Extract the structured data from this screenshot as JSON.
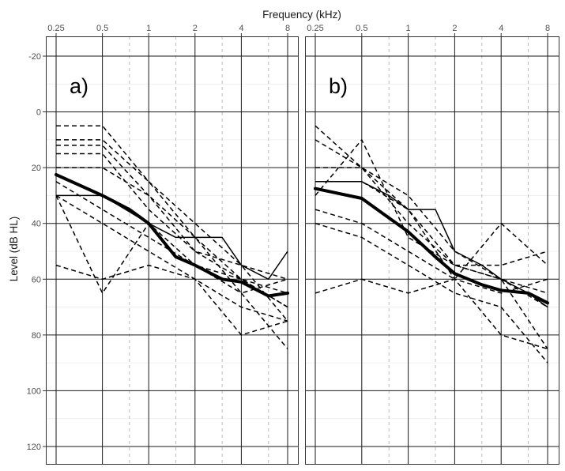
{
  "chart_data": {
    "type": "line",
    "title": "",
    "xlabel": "Frequency (kHz)",
    "ylabel": "Level (dB HL)",
    "x_scale": "log2",
    "xlim": [
      0.25,
      8
    ],
    "ylim": [
      -25,
      127
    ],
    "y_reversed": true,
    "x_ticks": [
      0.25,
      0.5,
      1,
      2,
      4,
      8
    ],
    "x_tick_labels": [
      "0.25",
      "0.5",
      "1",
      "2",
      "4",
      "8"
    ],
    "x_minor_ticks": [
      0.75,
      1.5,
      3,
      6
    ],
    "y_ticks": [
      -20,
      0,
      20,
      40,
      60,
      80,
      100,
      120
    ],
    "y_tick_labels": [
      "-20",
      "0",
      "20",
      "40",
      "60",
      "80",
      "100",
      "120"
    ],
    "grid": true,
    "panels": [
      {
        "label": "a)",
        "mean": {
          "x": [
            0.25,
            0.5,
            0.75,
            1,
            1.5,
            2,
            3,
            4,
            6,
            8
          ],
          "y": [
            22.5,
            30,
            35,
            40,
            52,
            55,
            60,
            61,
            66,
            65
          ]
        },
        "individual": [
          {
            "style": "dashed",
            "x": [
              0.25,
              0.5,
              1,
              2,
              4,
              8
            ],
            "y": [
              5,
              5,
              25,
              40,
              55,
              60
            ]
          },
          {
            "style": "dashed",
            "x": [
              0.25,
              0.5,
              1,
              2,
              4,
              8
            ],
            "y": [
              10,
              10,
              25,
              45,
              60,
              65
            ]
          },
          {
            "style": "dashed",
            "x": [
              0.25,
              0.5,
              1,
              2,
              4,
              8
            ],
            "y": [
              12,
              12,
              30,
              50,
              55,
              75
            ]
          },
          {
            "style": "dashed",
            "x": [
              0.25,
              0.5,
              1,
              2,
              4,
              8
            ],
            "y": [
              15,
              15,
              35,
              50,
              60,
              70
            ]
          },
          {
            "style": "dashed",
            "x": [
              0.25,
              0.5,
              1,
              2,
              4,
              8
            ],
            "y": [
              20,
              20,
              30,
              45,
              65,
              60
            ]
          },
          {
            "style": "dashed",
            "x": [
              0.25,
              0.5,
              1,
              2,
              4,
              8
            ],
            "y": [
              25,
              35,
              45,
              55,
              60,
              70
            ]
          },
          {
            "style": "dashed",
            "x": [
              0.25,
              0.5,
              1,
              2,
              4,
              8
            ],
            "y": [
              30,
              40,
              50,
              60,
              70,
              75
            ]
          },
          {
            "style": "dashed",
            "x": [
              0.25,
              0.5,
              1,
              2,
              4,
              8
            ],
            "y": [
              30,
              65,
              40,
              55,
              65,
              85
            ]
          },
          {
            "style": "dashed",
            "x": [
              0.25,
              0.5,
              1,
              2,
              4,
              8
            ],
            "y": [
              55,
              60,
              55,
              60,
              80,
              75
            ]
          },
          {
            "style": "solid",
            "x": [
              0.25,
              0.5,
              1,
              1.5,
              2,
              3,
              4,
              6,
              8
            ],
            "y": [
              30,
              30,
              40,
              45,
              45,
              45,
              55,
              60,
              50
            ]
          }
        ]
      },
      {
        "label": "b)",
        "mean": {
          "x": [
            0.25,
            0.5,
            0.75,
            1,
            1.5,
            2,
            3,
            4,
            6,
            8
          ],
          "y": [
            27.5,
            31,
            38,
            43,
            52,
            58,
            62,
            64,
            65,
            68.5
          ]
        },
        "individual": [
          {
            "style": "dashed",
            "x": [
              0.25,
              0.5,
              1,
              2,
              4,
              8
            ],
            "y": [
              5,
              20,
              30,
              50,
              60,
              65
            ]
          },
          {
            "style": "dashed",
            "x": [
              0.25,
              0.5,
              1,
              2,
              4,
              8
            ],
            "y": [
              10,
              20,
              35,
              55,
              55,
              50
            ]
          },
          {
            "style": "dashed",
            "x": [
              0.25,
              0.5,
              1,
              2,
              4,
              8
            ],
            "y": [
              20,
              20,
              40,
              55,
              60,
              70
            ]
          },
          {
            "style": "dashed",
            "x": [
              0.25,
              0.5,
              1,
              2,
              4,
              8
            ],
            "y": [
              25,
              25,
              35,
              60,
              65,
              60
            ]
          },
          {
            "style": "dashed",
            "x": [
              0.25,
              0.5,
              1,
              2,
              4,
              8
            ],
            "y": [
              30,
              10,
              45,
              55,
              60,
              85
            ]
          },
          {
            "style": "dashed",
            "x": [
              0.25,
              0.5,
              1,
              2,
              4,
              8
            ],
            "y": [
              35,
              40,
              50,
              60,
              40,
              55
            ]
          },
          {
            "style": "dashed",
            "x": [
              0.25,
              0.5,
              1,
              2,
              4,
              8
            ],
            "y": [
              40,
              45,
              55,
              65,
              70,
              90
            ]
          },
          {
            "style": "dashed",
            "x": [
              0.25,
              0.5,
              1,
              2,
              4,
              8
            ],
            "y": [
              65,
              60,
              65,
              60,
              80,
              85
            ]
          },
          {
            "style": "solid",
            "x": [
              0.25,
              0.5,
              0.75,
              1,
              1.25,
              1.5,
              2,
              3,
              4,
              6,
              8
            ],
            "y": [
              25,
              25,
              30,
              35,
              35,
              35,
              50,
              55,
              60,
              65,
              70
            ]
          }
        ]
      }
    ]
  }
}
